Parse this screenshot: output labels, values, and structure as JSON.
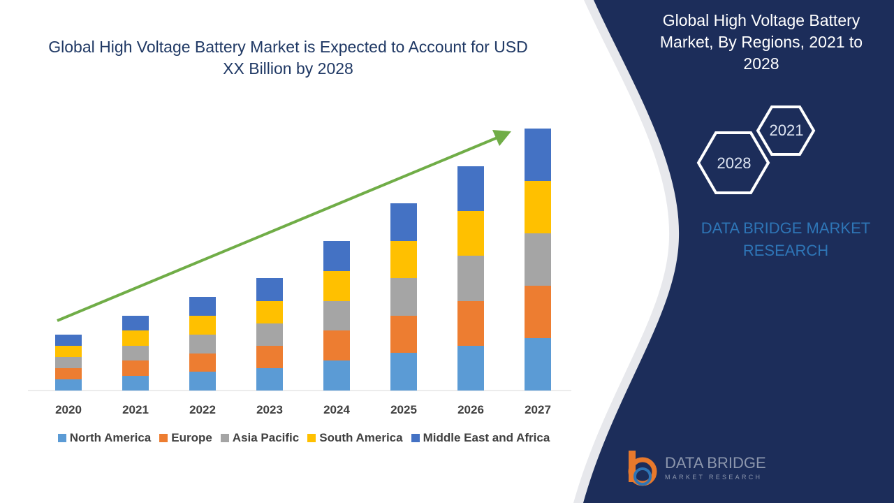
{
  "chart_data": {
    "type": "bar",
    "stacked": true,
    "title": "Global High Voltage Battery Market is Expected to Account for USD XX Billion by 2028",
    "categories": [
      "2020",
      "2021",
      "2022",
      "2023",
      "2024",
      "2025",
      "2026",
      "2027"
    ],
    "series": [
      {
        "name": "North America",
        "color": "#5b9bd5",
        "values": [
          16,
          21,
          27,
          32,
          43,
          54,
          64,
          75
        ]
      },
      {
        "name": "Europe",
        "color": "#ed7d31",
        "values": [
          16,
          22,
          26,
          32,
          43,
          53,
          64,
          75
        ]
      },
      {
        "name": "Asia Pacific",
        "color": "#a5a5a5",
        "values": [
          16,
          21,
          27,
          32,
          42,
          54,
          65,
          75
        ]
      },
      {
        "name": "South America",
        "color": "#ffc000",
        "values": [
          16,
          22,
          27,
          32,
          43,
          53,
          64,
          75
        ]
      },
      {
        "name": "Middle East and Africa",
        "color": "#4472c4",
        "values": [
          16,
          21,
          27,
          33,
          43,
          54,
          64,
          75
        ]
      }
    ]
  },
  "panel": {
    "title": "Global High Voltage Battery Market, By Regions, 2021 to 2028",
    "hexagons": [
      "2021",
      "2028"
    ],
    "brand": "DATA BRIDGE MARKET RESEARCH",
    "logo": {
      "name": "DATA BRIDGE",
      "tagline": "MARKET RESEARCH"
    }
  }
}
